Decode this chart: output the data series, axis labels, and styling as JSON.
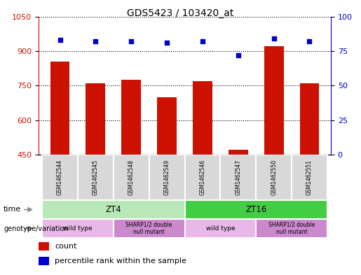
{
  "title": "GDS5423 / 103420_at",
  "samples": [
    "GSM1462544",
    "GSM1462545",
    "GSM1462548",
    "GSM1462549",
    "GSM1462546",
    "GSM1462547",
    "GSM1462550",
    "GSM1462551"
  ],
  "counts": [
    855,
    760,
    775,
    700,
    770,
    470,
    920,
    760
  ],
  "percentiles": [
    83,
    82,
    82,
    81,
    82,
    72,
    84,
    82
  ],
  "ylim_left": [
    450,
    1050
  ],
  "ylim_right": [
    0,
    100
  ],
  "yticks_left": [
    450,
    600,
    750,
    900,
    1050
  ],
  "yticks_right": [
    0,
    25,
    50,
    75,
    100
  ],
  "bar_color": "#cc1100",
  "dot_color": "#0000cc",
  "plot_bg": "white",
  "color_ZT4": "#b8e8b8",
  "color_ZT16": "#44cc44",
  "color_wild": "#e8b8e8",
  "color_sharp": "#cc88cc",
  "legend_count_color": "#cc1100",
  "legend_dot_color": "#0000cc",
  "arrow_color": "#888888",
  "cell_bg": "#d8d8d8"
}
